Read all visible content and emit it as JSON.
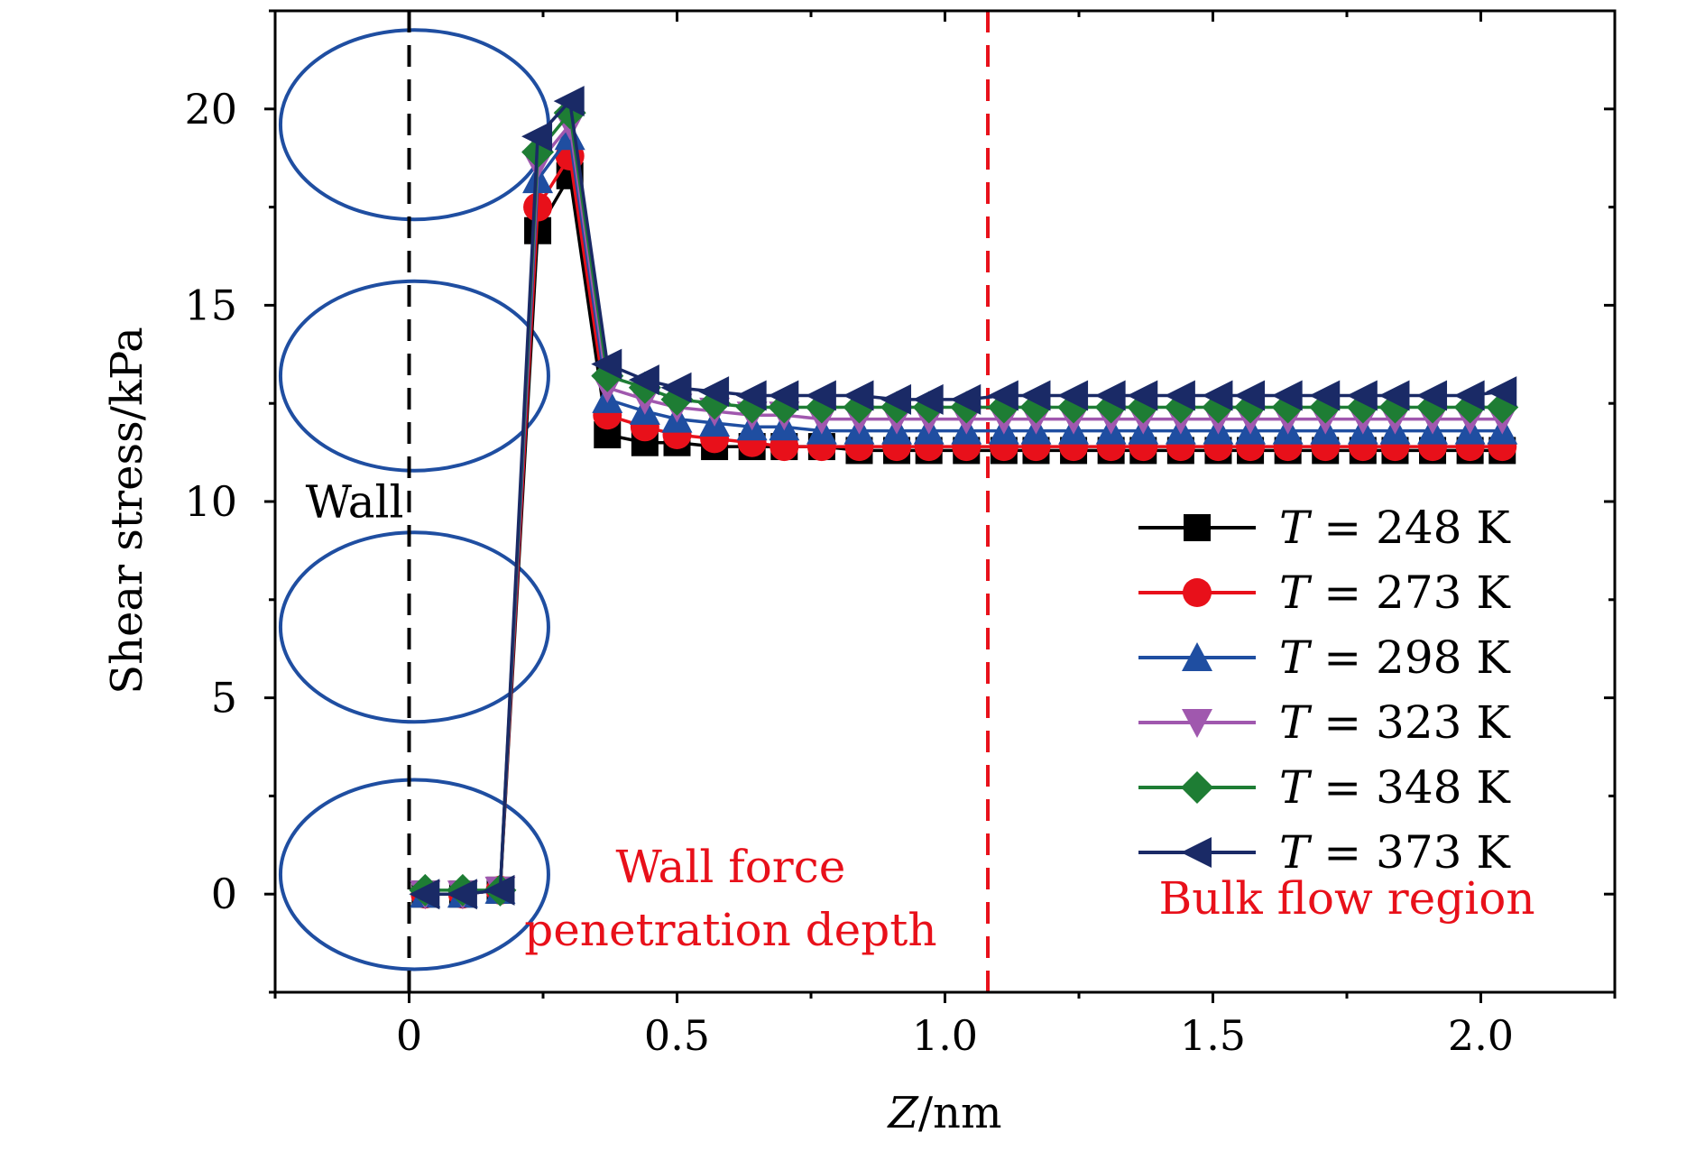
{
  "chart_data": {
    "type": "line",
    "title": "",
    "xlabel_var": "Z",
    "xlabel_unit": "/nm",
    "ylabel": "Shear stress/kPa",
    "xlim": [
      -0.25,
      2.25
    ],
    "ylim": [
      -2.5,
      22.5
    ],
    "x_ticks": [
      0,
      0.5,
      1.0,
      1.5,
      2.0
    ],
    "x_tick_labels": [
      "0",
      "0.5",
      "1.0",
      "1.5",
      "2.0"
    ],
    "y_ticks": [
      0,
      5,
      10,
      15,
      20
    ],
    "y_tick_labels": [
      "0",
      "5",
      "10",
      "15",
      "20"
    ],
    "grid": false,
    "legend_position": "right",
    "x": [
      0.03,
      0.1,
      0.17,
      0.24,
      0.3,
      0.37,
      0.44,
      0.5,
      0.57,
      0.64,
      0.7,
      0.77,
      0.84,
      0.91,
      0.97,
      1.04,
      1.11,
      1.17,
      1.24,
      1.31,
      1.37,
      1.44,
      1.51,
      1.57,
      1.64,
      1.71,
      1.78,
      1.84,
      1.91,
      1.98,
      2.04
    ],
    "series": [
      {
        "name": "T = 248 K",
        "var": "T",
        "label": " = 248 K",
        "color": "#000000",
        "marker": "square",
        "values": [
          0.0,
          0.0,
          0.1,
          16.9,
          18.3,
          11.7,
          11.5,
          11.5,
          11.4,
          11.4,
          11.4,
          11.4,
          11.3,
          11.3,
          11.3,
          11.3,
          11.3,
          11.3,
          11.3,
          11.3,
          11.3,
          11.3,
          11.3,
          11.3,
          11.3,
          11.3,
          11.3,
          11.3,
          11.3,
          11.3,
          11.3
        ]
      },
      {
        "name": "T = 273 K",
        "var": "T",
        "label": " = 273 K",
        "color": "#e8101a",
        "marker": "circle",
        "values": [
          0.0,
          0.0,
          0.1,
          17.5,
          18.8,
          12.2,
          11.9,
          11.7,
          11.6,
          11.5,
          11.4,
          11.4,
          11.4,
          11.4,
          11.4,
          11.4,
          11.4,
          11.4,
          11.4,
          11.4,
          11.4,
          11.4,
          11.4,
          11.4,
          11.4,
          11.4,
          11.4,
          11.4,
          11.4,
          11.4,
          11.4
        ]
      },
      {
        "name": "T = 298 K",
        "var": "T",
        "label": " = 298 K",
        "color": "#1f4ea1",
        "marker": "triangle-up",
        "values": [
          0.0,
          0.0,
          0.1,
          18.2,
          19.3,
          12.6,
          12.3,
          12.1,
          12.0,
          11.9,
          11.9,
          11.8,
          11.8,
          11.8,
          11.8,
          11.8,
          11.8,
          11.8,
          11.8,
          11.8,
          11.8,
          11.8,
          11.8,
          11.8,
          11.8,
          11.8,
          11.8,
          11.8,
          11.8,
          11.8,
          11.8
        ]
      },
      {
        "name": "T = 323 K",
        "var": "T",
        "label": " = 323 K",
        "color": "#a058ae",
        "marker": "triangle-down",
        "values": [
          0.0,
          0.0,
          0.1,
          18.6,
          19.6,
          12.9,
          12.6,
          12.4,
          12.3,
          12.2,
          12.2,
          12.1,
          12.1,
          12.1,
          12.1,
          12.1,
          12.1,
          12.1,
          12.1,
          12.1,
          12.1,
          12.1,
          12.1,
          12.1,
          12.1,
          12.1,
          12.1,
          12.1,
          12.1,
          12.1,
          12.1
        ]
      },
      {
        "name": "T = 348 K",
        "var": "T",
        "label": " = 348 K",
        "color": "#1e7d34",
        "marker": "diamond",
        "values": [
          0.1,
          0.1,
          0.1,
          18.9,
          19.9,
          13.2,
          12.9,
          12.6,
          12.5,
          12.4,
          12.4,
          12.4,
          12.4,
          12.4,
          12.4,
          12.4,
          12.4,
          12.4,
          12.4,
          12.4,
          12.4,
          12.4,
          12.4,
          12.4,
          12.4,
          12.4,
          12.4,
          12.4,
          12.4,
          12.4,
          12.4
        ]
      },
      {
        "name": "T = 373 K",
        "var": "T",
        "label": " = 373 K",
        "color": "#1a2a66",
        "marker": "triangle-left",
        "values": [
          0.0,
          0.0,
          0.1,
          19.3,
          20.2,
          13.5,
          13.1,
          12.9,
          12.8,
          12.7,
          12.7,
          12.7,
          12.7,
          12.6,
          12.6,
          12.6,
          12.7,
          12.7,
          12.7,
          12.7,
          12.7,
          12.7,
          12.7,
          12.7,
          12.7,
          12.7,
          12.7,
          12.7,
          12.7,
          12.7,
          12.8
        ]
      }
    ],
    "wall_line_x": 0,
    "wall_line_color": "#000000",
    "penetration_line_x": 1.08,
    "penetration_line_color": "#e8101a",
    "wall_atom_circles_y": [
      19.6,
      13.2,
      6.8,
      0.5
    ],
    "wall_atom_color": "#1f4ea1",
    "annotations": {
      "wall": "Wall",
      "wall_force_line1": "Wall force",
      "wall_force_line2": "penetration depth",
      "bulk_flow": "Bulk flow region"
    },
    "annotation_color": "#e8101a"
  }
}
